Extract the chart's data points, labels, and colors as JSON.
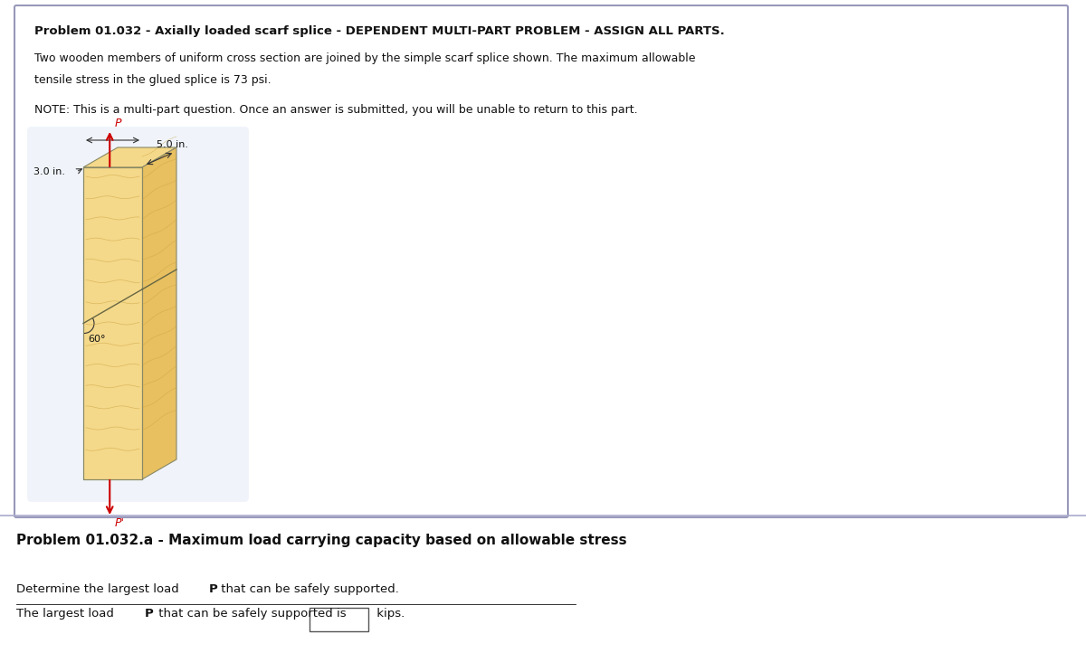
{
  "title": "Problem 01.032 - Axially loaded scarf splice - DEPENDENT MULTI-PART PROBLEM - ASSIGN ALL PARTS.",
  "description_line1": "Two wooden members of uniform cross section are joined by the simple scarf splice shown. The maximum allowable",
  "description_line2": "tensile stress in the glued splice is 73 psi.",
  "note_line": "NOTE: This is a multi-part question. Once an answer is submitted, you will be unable to return to this part.",
  "dim_width": "3.0 in.",
  "dim_depth": "5.0 in.",
  "angle_label": "60°",
  "label_P_top": "P",
  "label_P_bottom": "P'",
  "section_title": "Problem 01.032.a - Maximum load carrying capacity based on allowable stress",
  "question_line1": "Determine the largest load ",
  "question_bold1": "P",
  "question_line1_rest": " that can be safely supported.",
  "question_line2_pre": "The largest load ",
  "question_bold2": "P",
  "question_line2_mid": " that can be safely supported is",
  "question_line2_post": "kips.",
  "bg_color": "#f0f4fa",
  "wood_color_light": "#f5d98a",
  "wood_color_dark": "#e8c060",
  "wood_grain_color": "#c8a040",
  "arrow_color": "#cc0000",
  "border_color": "#9999bb",
  "outer_bg": "#ffffff"
}
